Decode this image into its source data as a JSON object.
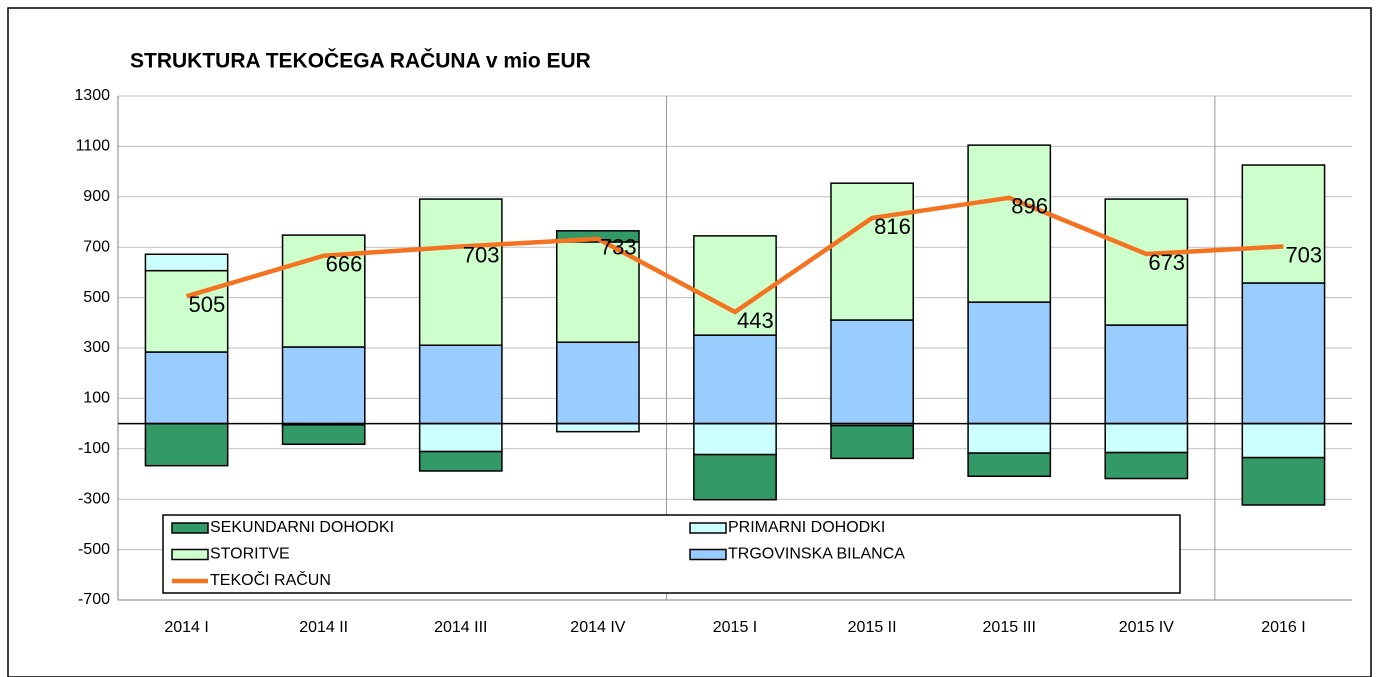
{
  "chart_data": {
    "type": "bar",
    "stacked": true,
    "title": "STRUKTURA TEKOČEGA RAČUNA  v mio EUR",
    "categories": [
      "2014 I",
      "2014 II",
      "2014 III",
      "2014 IV",
      "2015 I",
      "2015 II",
      "2015 III",
      "2015 IV",
      "2016 I"
    ],
    "series": [
      {
        "name": "SEKUNDARNI  DOHODKI",
        "color": "#339966",
        "values": [
          -167,
          -77,
          -77,
          44,
          -179,
          -130,
          -92,
          -103,
          -188
        ]
      },
      {
        "name": "PRIMARNI DOHODKI",
        "color": "#ccffff",
        "values": [
          65,
          -5,
          -111,
          -32,
          -123,
          -8,
          -117,
          -115,
          -135
        ]
      },
      {
        "name": "STORITVE",
        "color": "#ccffcc",
        "values": [
          323,
          444,
          580,
          398,
          394,
          543,
          623,
          500,
          468
        ]
      },
      {
        "name": "TRGOVINSKA BILANCA",
        "color": "#99ccff",
        "values": [
          284,
          304,
          311,
          323,
          351,
          411,
          482,
          391,
          558
        ]
      },
      {
        "name": "TEKOČI RAČUN",
        "type": "line",
        "color": "#f47321",
        "values": [
          505,
          666,
          703,
          733,
          443,
          816,
          896,
          673,
          703
        ]
      }
    ],
    "ylim": [
      -700,
      1300
    ],
    "yticks": [
      -700,
      -500,
      -300,
      -100,
      100,
      300,
      500,
      700,
      900,
      1100,
      1300
    ],
    "grid": true
  }
}
